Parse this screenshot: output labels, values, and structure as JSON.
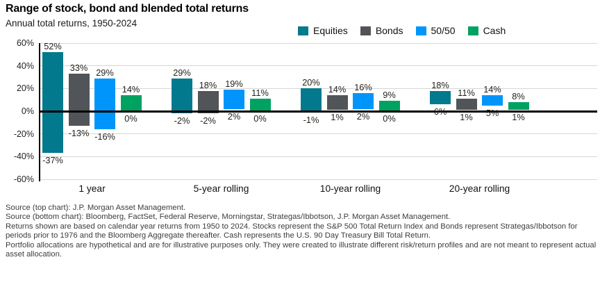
{
  "header": {
    "title": "Range of stock, bond and blended total returns",
    "subtitle": "Annual total returns, 1950-2024"
  },
  "chart_data": {
    "type": "bar",
    "subtype": "floating-range-columns",
    "title": "Range of stock, bond and blended total returns",
    "subtitle": "Annual total returns, 1950-2024",
    "categories": [
      "1 year",
      "5-year rolling",
      "10-year rolling",
      "20-year rolling"
    ],
    "series": [
      {
        "name": "Equities",
        "color": "#03798d",
        "max_values": [
          52,
          29,
          20,
          18
        ],
        "min_values": [
          -37,
          -2,
          -1,
          6
        ]
      },
      {
        "name": "Bonds",
        "color": "#515559",
        "max_values": [
          33,
          18,
          14,
          11
        ],
        "min_values": [
          -13,
          -2,
          1,
          1
        ]
      },
      {
        "name": "50/50",
        "color": "#0095fb",
        "max_values": [
          29,
          19,
          16,
          14
        ],
        "min_values": [
          -16,
          2,
          2,
          5
        ]
      },
      {
        "name": "Cash",
        "color": "#00a261",
        "max_values": [
          14,
          11,
          9,
          8
        ],
        "min_values": [
          0,
          0,
          0,
          1
        ]
      }
    ],
    "ylim": [
      -60,
      60
    ],
    "yticks": [
      60,
      40,
      20,
      0,
      -20,
      -40,
      -60
    ],
    "ytick_suffix": "%",
    "value_label_suffix": "%",
    "grid": true,
    "legend_position": "top-right",
    "zero_line": true
  },
  "colors": {
    "gridline": "#d6d6d6",
    "axis": "#000000",
    "value_label_text": "#25231d",
    "footnote_text": "#3c3c3c"
  },
  "footnotes": [
    "Source (top chart): J.P. Morgan Asset Management.",
    "Source (bottom chart): Bloomberg, FactSet, Federal Reserve, Morningstar, Strategas/Ibbotson, J.P. Morgan Asset Management.",
    "Returns shown are based on calendar year returns from 1950 to 2024. Stocks represent the S&P 500 Total Return Index and Bonds represent Strategas/Ibbotson for periods prior to 1976 and the Bloomberg Aggregate thereafter. Cash represents the U.S. 90 Day Treasury Bill Total Return.",
    "Portfolio allocations are hypothetical and are for illustrative purposes only. They were created to illustrate different risk/return profiles and are not meant to represent actual asset allocation."
  ]
}
